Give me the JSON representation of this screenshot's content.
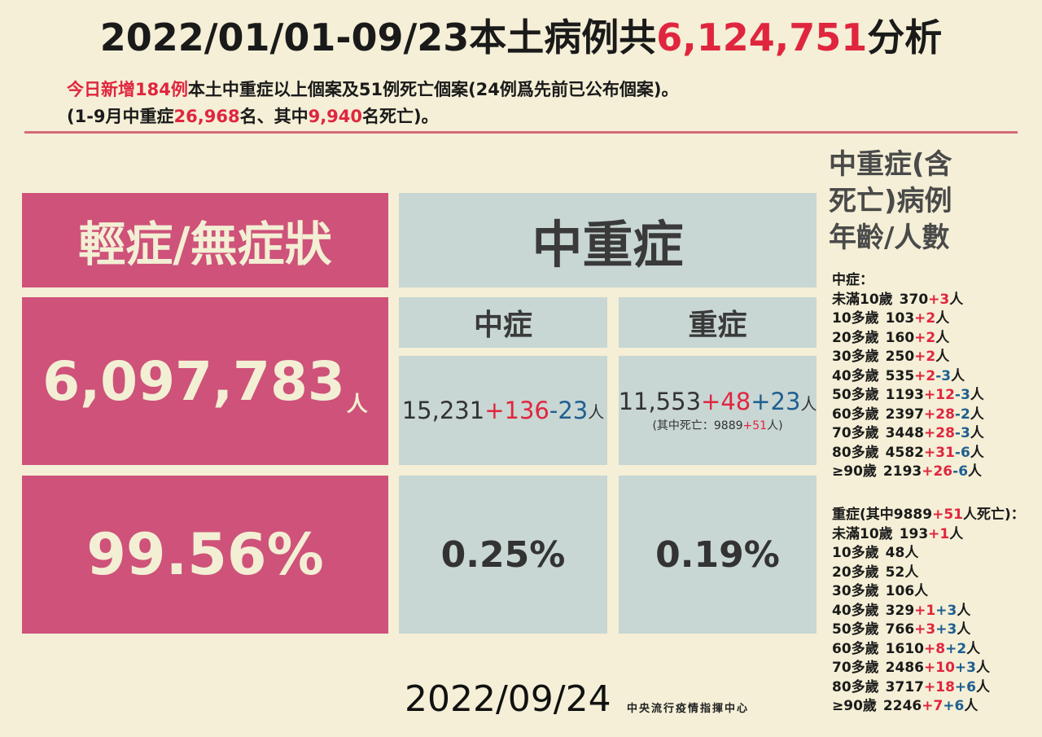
{
  "header": {
    "title_prefix": "2022/01/01-09/23本土病例共",
    "title_total": "6,124,751",
    "title_suffix": "分析",
    "line1_a": "今日新增",
    "line1_b": "184例",
    "line1_c": "本土中重症以上個案及51例死亡個案(24例爲先前已公布個案)。",
    "line2_a": "(1-9月中重症",
    "line2_b": "26,968",
    "line2_c": "名、其中",
    "line2_d": "9,940",
    "line2_e": "名死亡)。"
  },
  "table": {
    "mild_header": "輕症/無症狀",
    "moderate_severe_header": "中重症",
    "mild_count": "6,097,783",
    "mild_unit": "人",
    "mild_pct": "99.56%",
    "moderate_header": "中症",
    "severe_header": "重症",
    "moderate_base": "15,231",
    "moderate_plus": "+136",
    "moderate_minus": "-23",
    "moderate_unit": "人",
    "severe_base": "11,553",
    "severe_plus": "+48",
    "severe_plus2": "+23",
    "severe_unit": "人",
    "severe_note_a": "(其中死亡：9889",
    "severe_note_b": "+51",
    "severe_note_c": "人)",
    "moderate_pct": "0.25%",
    "severe_pct": "0.19%"
  },
  "sidebar": {
    "title_line1": "中重症(含",
    "title_line2": "死亡)病例",
    "title_line3": "年齡/人數",
    "moderate_label": "中症：",
    "moderate_rows": [
      {
        "age": "未滿10歲",
        "base": "370",
        "red": "+3",
        "blue": "",
        "unit": "人"
      },
      {
        "age": "10多歲",
        "base": "103",
        "red": "+2",
        "blue": "",
        "unit": "人"
      },
      {
        "age": "20多歲",
        "base": "160",
        "red": "+2",
        "blue": "",
        "unit": "人"
      },
      {
        "age": "30多歲",
        "base": "250",
        "red": "+2",
        "blue": "",
        "unit": "人"
      },
      {
        "age": "40多歲",
        "base": "535",
        "red": "+2",
        "blue": "-3",
        "unit": "人"
      },
      {
        "age": "50多歲",
        "base": "1193",
        "red": "+12",
        "blue": "-3",
        "unit": "人"
      },
      {
        "age": "60多歲",
        "base": "2397",
        "red": "+28",
        "blue": "-2",
        "unit": "人"
      },
      {
        "age": "70多歲",
        "base": "3448",
        "red": "+28",
        "blue": "-3",
        "unit": "人"
      },
      {
        "age": "80多歲",
        "base": "4582",
        "red": "+31",
        "blue": "-6",
        "unit": "人"
      },
      {
        "age": "≥90歲",
        "base": "2193",
        "red": "+26",
        "blue": "-6",
        "unit": "人"
      }
    ],
    "severe_label_a": "重症(其中9889",
    "severe_label_b": "+51",
    "severe_label_c": "人死亡)：",
    "severe_rows": [
      {
        "age": "未滿10歲",
        "base": "193",
        "red": "+1",
        "blue": "",
        "unit": "人"
      },
      {
        "age": "10多歲",
        "base": "48",
        "red": "",
        "blue": "",
        "unit": "人"
      },
      {
        "age": "20多歲",
        "base": "52",
        "red": "",
        "blue": "",
        "unit": "人"
      },
      {
        "age": "30多歲",
        "base": "106",
        "red": "",
        "blue": "",
        "unit": "人"
      },
      {
        "age": "40多歲",
        "base": "329",
        "red": "+1",
        "blue": "+3",
        "unit": "人"
      },
      {
        "age": "50多歲",
        "base": "766",
        "red": "+3",
        "blue": "+3",
        "unit": "人"
      },
      {
        "age": "60多歲",
        "base": "1610",
        "red": "+8",
        "blue": "+2",
        "unit": "人"
      },
      {
        "age": "70多歲",
        "base": "2486",
        "red": "+10",
        "blue": "+3",
        "unit": "人"
      },
      {
        "age": "80多歲",
        "base": "3717",
        "red": "+18",
        "blue": "+6",
        "unit": "人"
      },
      {
        "age": "≥90歲",
        "base": "2246",
        "red": "+7",
        "blue": "+6",
        "unit": "人"
      }
    ]
  },
  "footer": {
    "date": "2022/09/24",
    "org": "中央流行疫情指揮中心"
  }
}
